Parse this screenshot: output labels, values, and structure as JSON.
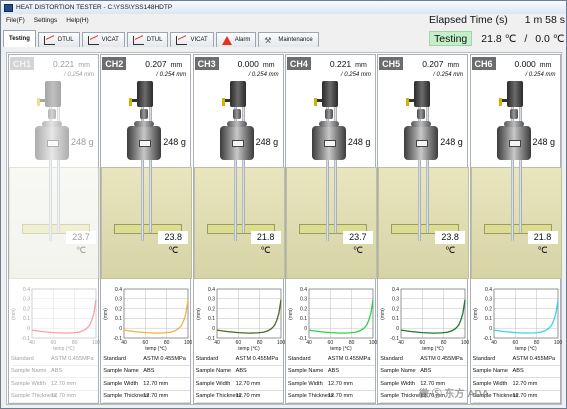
{
  "window": {
    "title": "HEAT DISTORTION TESTER - C:\\YSS\\YSS148HDTP"
  },
  "menu": [
    "File(F)",
    "Settings",
    "Help(H)"
  ],
  "tabs": [
    {
      "label": "Testing",
      "icon": "none",
      "active": true
    },
    {
      "label": "DTUL",
      "icon": "chart-icon",
      "active": false
    },
    {
      "label": "VICAT",
      "icon": "chart-icon",
      "active": false
    },
    {
      "label": "DTUL",
      "icon": "chart-icon",
      "active": false
    },
    {
      "label": "VICAT",
      "icon": "chart-icon",
      "active": false
    },
    {
      "label": "Alarm",
      "icon": "alarm-icon",
      "active": false
    },
    {
      "label": "Maintenance",
      "icon": "tools-icon",
      "active": false
    }
  ],
  "status": {
    "elapsed_label": "Elapsed Time (s)",
    "elapsed_value": "1 m 58 s",
    "state": "Testing",
    "temp_primary": "21.8 ℃",
    "separator": "/",
    "temp_secondary": "0.0 ℃"
  },
  "channels": [
    {
      "name": "CH1",
      "enabled": false,
      "displacement": "0.221",
      "displacement_unit": "mm",
      "limit": "/ 0.254 mm",
      "weight": "248 g",
      "bath_temp": "23.7 ℃",
      "curve_color": "#e8202a",
      "info": {
        "standard_label": "Standard",
        "standard": "ASTM 0.455MPa",
        "name_label": "Sample Name",
        "name": "ABS",
        "width_label": "Sample Width",
        "width": "12.70 mm",
        "thickness_label": "Sample Thickness",
        "thickness": "12.70 mm"
      }
    },
    {
      "name": "CH2",
      "enabled": true,
      "displacement": "0.207",
      "displacement_unit": "mm",
      "limit": "/ 0.254 mm",
      "weight": "248 g",
      "bath_temp": "23.8 ℃",
      "curve_color": "#f0b24a",
      "info": {
        "standard_label": "Standard",
        "standard": "ASTM 0.455MPa",
        "name_label": "Sample Name",
        "name": "ABS",
        "width_label": "Sample Width",
        "width": "12.70 mm",
        "thickness_label": "Sample Thickness",
        "thickness": "12.70 mm"
      }
    },
    {
      "name": "CH3",
      "enabled": true,
      "displacement": "0.000",
      "displacement_unit": "mm",
      "limit": "/ 0.254 mm",
      "weight": "248 g",
      "bath_temp": "21.8 ℃",
      "curve_color": "#4f6a1e",
      "info": {
        "standard_label": "Standard",
        "standard": "ASTM 0.455MPa",
        "name_label": "Sample Name",
        "name": "ABS",
        "width_label": "Sample Width",
        "width": "12.70 mm",
        "thickness_label": "Sample Thickness",
        "thickness": "12.70 mm"
      }
    },
    {
      "name": "CH4",
      "enabled": true,
      "displacement": "0.221",
      "displacement_unit": "mm",
      "limit": "/ 0.254 mm",
      "weight": "248 g",
      "bath_temp": "23.7 ℃",
      "curve_color": "#2ad14a",
      "info": {
        "standard_label": "Standard",
        "standard": "ASTM 0.455MPa",
        "name_label": "Sample Name",
        "name": "ABS",
        "width_label": "Sample Width",
        "width": "12.70 mm",
        "thickness_label": "Sample Thickness",
        "thickness": "12.70 mm"
      }
    },
    {
      "name": "CH5",
      "enabled": true,
      "displacement": "0.207",
      "displacement_unit": "mm",
      "limit": "/ 0.254 mm",
      "weight": "248 g",
      "bath_temp": "23.8 ℃",
      "curve_color": "#1c7a2c",
      "info": {
        "standard_label": "Standard",
        "standard": "ASTM 0.455MPa",
        "name_label": "Sample Name",
        "name": "ABS",
        "width_label": "Sample Width",
        "width": "12.70 mm",
        "thickness_label": "Sample Thickness",
        "thickness": "12.70 mm"
      }
    },
    {
      "name": "CH6",
      "enabled": true,
      "displacement": "0.000",
      "displacement_unit": "mm",
      "limit": "/ 0.254 mm",
      "weight": "248 g",
      "bath_temp": "21.8 ℃",
      "curve_color": "#39d6e6",
      "info": {
        "standard_label": "Standard",
        "standard": "ASTM 0.455MPa",
        "name_label": "Sample Name",
        "name": "ABS",
        "width_label": "Sample Width",
        "width": "12.70 mm",
        "thickness_label": "Sample Thickness",
        "thickness": "12.70 mm"
      }
    }
  ],
  "chart_data": {
    "type": "line",
    "xlabel": "temp (℃)",
    "ylabel": "(mm)",
    "xlim": [
      40,
      100
    ],
    "ylim": [
      -0.1,
      0.4
    ],
    "x_ticks": [
      40,
      60,
      80,
      100
    ],
    "y_ticks": [
      -0.1,
      0,
      0.1,
      0.2,
      0.3,
      0.4
    ],
    "grid": true,
    "curve": {
      "x": [
        40,
        50,
        60,
        70,
        78,
        84,
        88,
        91,
        94,
        96,
        98,
        100
      ],
      "y": [
        -0.02,
        -0.035,
        -0.045,
        -0.05,
        -0.048,
        -0.04,
        -0.025,
        -0.005,
        0.03,
        0.08,
        0.15,
        0.29
      ]
    }
  },
  "watermark": "微 Ⓢ 东方 ADA"
}
